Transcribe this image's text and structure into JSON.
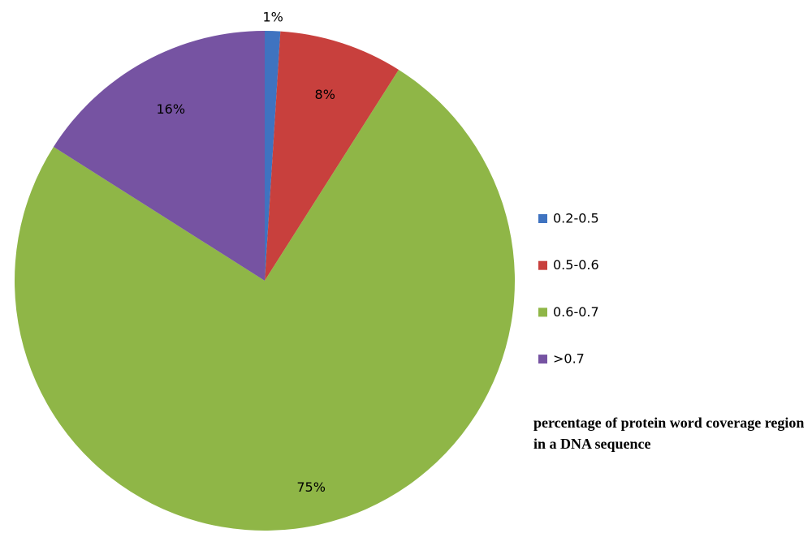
{
  "chart_data": {
    "type": "pie",
    "title": "percentage of protein word coverage region in a DNA sequence",
    "categories": [
      "0.2-0.5",
      "0.5-0.6",
      "0.6-0.7",
      ">0.7"
    ],
    "values": [
      1,
      8,
      75,
      16
    ],
    "value_labels": [
      "1%",
      "8%",
      "75%",
      "16%"
    ],
    "colors": [
      "#3f73c0",
      "#c8403d",
      "#8fb647",
      "#7653a2"
    ],
    "legend": "right"
  }
}
